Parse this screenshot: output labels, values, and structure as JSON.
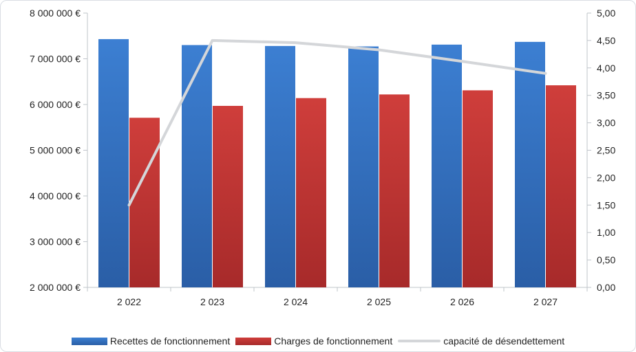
{
  "chart_data": {
    "type": "bar",
    "categories": [
      "2 022",
      "2 023",
      "2 024",
      "2 025",
      "2 026",
      "2 027"
    ],
    "series": [
      {
        "name": "Recettes de fonctionnement",
        "kind": "bar",
        "axis": "left",
        "color": "#3a78c8",
        "values": [
          7430000,
          7300000,
          7280000,
          7270000,
          7310000,
          7370000
        ]
      },
      {
        "name": "Charges de fonctionnement",
        "kind": "bar",
        "axis": "left",
        "color": "#c73a38",
        "values": [
          5710000,
          5970000,
          6140000,
          6220000,
          6310000,
          6420000
        ]
      },
      {
        "name": "capacité de désendettement",
        "kind": "line",
        "axis": "right",
        "color": "#d4d6d9",
        "values": [
          1.5,
          4.5,
          4.46,
          4.33,
          4.12,
          3.9
        ]
      }
    ],
    "y_left": {
      "min": 2000000,
      "max": 8000000,
      "ticks": [
        2000000,
        3000000,
        4000000,
        5000000,
        6000000,
        7000000,
        8000000
      ],
      "tick_labels": [
        "2 000 000 €",
        "3 000 000 €",
        "4 000 000 €",
        "5 000 000 €",
        "6 000 000 €",
        "7 000 000 €",
        "8 000 000 €"
      ]
    },
    "y_right": {
      "min": 0,
      "max": 5,
      "ticks": [
        0,
        0.5,
        1,
        1.5,
        2,
        2.5,
        3,
        3.5,
        4,
        4.5,
        5
      ],
      "tick_labels": [
        "0,00",
        "0,50",
        "1,00",
        "1,50",
        "2,00",
        "2,50",
        "3,00",
        "3,50",
        "4,00",
        "4,50",
        "5,00"
      ]
    },
    "grid": false,
    "legend_position": "bottom"
  }
}
